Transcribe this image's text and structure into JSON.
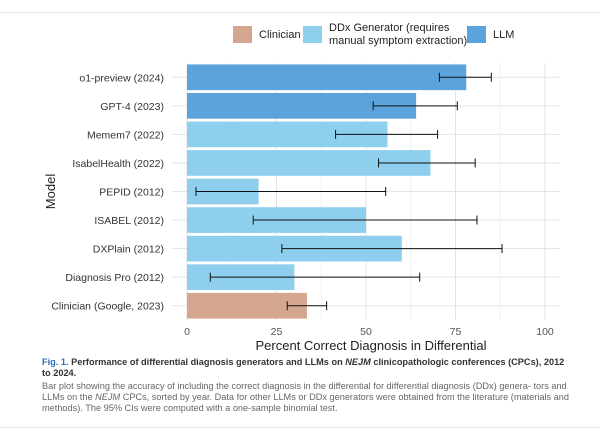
{
  "chart_data": {
    "type": "bar",
    "orientation": "horizontal",
    "xlabel": "Percent Correct Diagnosis in Differential",
    "ylabel": "Model",
    "xlim": [
      0,
      100
    ],
    "xticks": [
      0,
      25,
      50,
      75,
      100
    ],
    "grid": true,
    "legend_position": "top",
    "legend": [
      {
        "key": "clinician",
        "label": "Clinician",
        "color": "#d4a58f"
      },
      {
        "key": "ddx",
        "label": "DDx Generator (requires manual symptom extraction)",
        "label_lines": [
          "DDx Generator (requires",
          "manual symptom extraction)"
        ],
        "color": "#8ecfee"
      },
      {
        "key": "llm",
        "label": "LLM",
        "color": "#5aa3dd"
      }
    ],
    "categories": [
      "o1-preview (2024)",
      "GPT-4 (2023)",
      "Memem7 (2022)",
      "IsabelHealth (2022)",
      "PEPID (2012)",
      "ISABEL (2012)",
      "DXPlain (2012)",
      "Diagnosis Pro (2012)",
      "Clinician (Google, 2023)"
    ],
    "values": [
      78,
      64,
      56,
      68,
      20,
      50,
      60,
      30,
      33.5
    ],
    "ci_low": [
      70.5,
      52,
      41.5,
      53.5,
      2.5,
      18.5,
      26.5,
      6.5,
      28
    ],
    "ci_high": [
      85,
      75.5,
      70,
      80.5,
      55.5,
      81,
      88,
      65,
      39
    ],
    "groups": [
      "llm",
      "llm",
      "ddx",
      "ddx",
      "ddx",
      "ddx",
      "ddx",
      "ddx",
      "clinician"
    ]
  },
  "caption": {
    "label": "Fig. 1.",
    "title_before": "Performance of differential diagnosis generators and LLMs on ",
    "title_em": "NEJM",
    "title_after": " clinicopathologic conferences (CPCs), 2012 to 2024.",
    "body_1": "Bar plot showing the accuracy of including the correct diagnosis in the differential for differential diagnosis (DDx) genera-",
    "body_2a": "tors and LLMs on the ",
    "body_2em": "NEJM",
    "body_2b": " CPCs, sorted by year. Data for other LLMs or DDx generators were obtained from the literature",
    "body_3": "(materials and methods). The 95% CIs were computed with a one-sample binomial test."
  }
}
